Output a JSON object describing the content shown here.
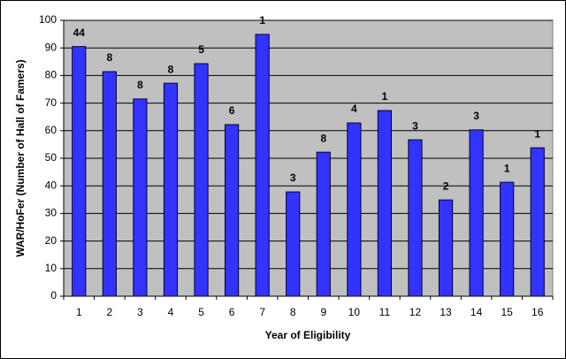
{
  "chart_data": {
    "type": "bar",
    "x_label": "Year of Eligibility",
    "y_label": "WAR/HoFer (Number of Hall of Famers)",
    "categories": [
      "1",
      "2",
      "3",
      "4",
      "5",
      "6",
      "7",
      "8",
      "9",
      "10",
      "11",
      "12",
      "13",
      "14",
      "15",
      "16"
    ],
    "values": [
      90.5,
      81.4,
      71.5,
      77.2,
      84.3,
      62.2,
      94.9,
      37.8,
      52.2,
      62.8,
      67.3,
      56.7,
      34.9,
      60.3,
      41.3,
      53.8
    ],
    "bar_labels": [
      44,
      8,
      8,
      8,
      5,
      6,
      1,
      3,
      8,
      4,
      1,
      3,
      2,
      3,
      1,
      1
    ],
    "color": "#3333ff",
    "ylim": [
      0,
      100
    ],
    "yticks": [
      0,
      10,
      20,
      30,
      40,
      50,
      60,
      70,
      80,
      90,
      100
    ],
    "grid": true
  }
}
